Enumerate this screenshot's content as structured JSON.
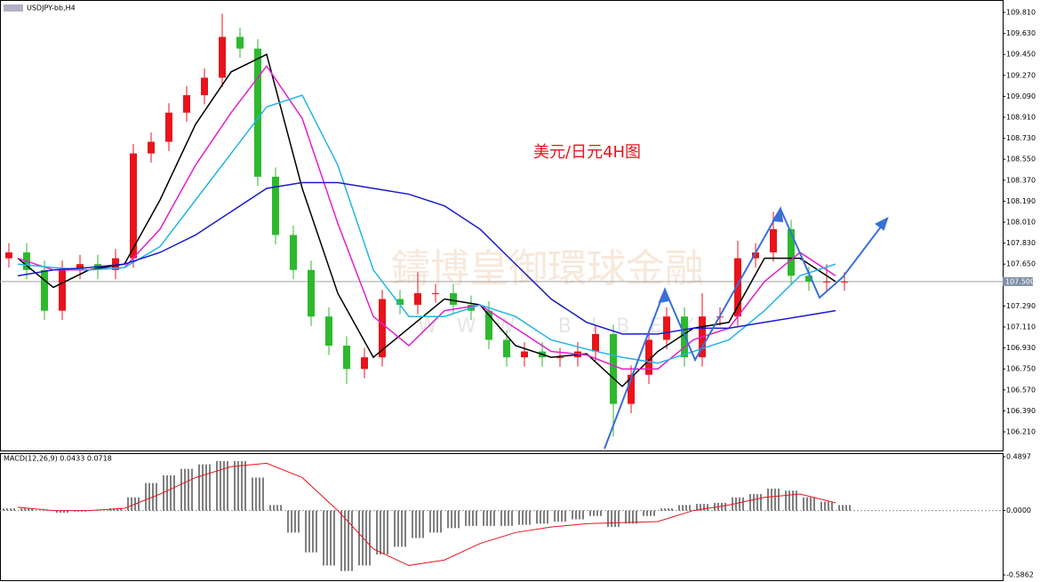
{
  "chart_data": {
    "type": "candlestick",
    "symbol": "USDJPY-bb,H4",
    "annotation": "美元/日元4H图",
    "watermark": "鑄博皇御環球金融",
    "watermark_sub": "WWW.BIBEX",
    "ylim": [
      106.05,
      109.917
    ],
    "yticks": [
      {
        "value": 109.81,
        "label": "109.810"
      },
      {
        "value": 109.63,
        "label": "109.630"
      },
      {
        "value": 109.45,
        "label": "109.450"
      },
      {
        "value": 109.27,
        "label": "109.270"
      },
      {
        "value": 109.09,
        "label": "109.090"
      },
      {
        "value": 108.91,
        "label": "108.910"
      },
      {
        "value": 108.73,
        "label": "108.730"
      },
      {
        "value": 108.55,
        "label": "108.550"
      },
      {
        "value": 108.37,
        "label": "108.370"
      },
      {
        "value": 108.19,
        "label": "108.190"
      },
      {
        "value": 108.01,
        "label": "108.010"
      },
      {
        "value": 107.83,
        "label": "107.830"
      },
      {
        "value": 107.65,
        "label": "107.650"
      },
      {
        "value": 107.29,
        "label": "107.290"
      },
      {
        "value": 107.11,
        "label": "107.110"
      },
      {
        "value": 106.93,
        "label": "106.930"
      },
      {
        "value": 106.75,
        "label": "106.750"
      },
      {
        "value": 106.57,
        "label": "106.570"
      },
      {
        "value": 106.39,
        "label": "106.390"
      },
      {
        "value": 106.21,
        "label": "106.210"
      }
    ],
    "last_price": {
      "value": 107.5,
      "label": "107.500"
    },
    "up_color": "#e8141b",
    "down_color": "#2db92d",
    "open": [
      107.7,
      107.75,
      107.6,
      107.25,
      107.6,
      107.65,
      107.6,
      107.7,
      108.6,
      108.7,
      108.95,
      109.1,
      109.25,
      109.6,
      109.5,
      108.4,
      107.9,
      107.6,
      107.2,
      106.95,
      106.75,
      106.85,
      107.35,
      107.3,
      107.4,
      107.4,
      107.3,
      107.25,
      107.0,
      106.85,
      106.9,
      106.85,
      106.85,
      106.9,
      107.05,
      106.45,
      106.7,
      107.0,
      107.2,
      106.85,
      107.2,
      107.2,
      107.7,
      107.75,
      107.95,
      107.55,
      107.5,
      107.5
    ],
    "high": [
      107.83,
      107.83,
      107.68,
      107.68,
      107.73,
      107.73,
      107.78,
      108.68,
      108.78,
      109.03,
      109.18,
      109.33,
      109.8,
      109.68,
      109.58,
      108.48,
      107.98,
      107.68,
      107.28,
      107.03,
      106.93,
      107.43,
      107.43,
      107.58,
      107.48,
      107.48,
      107.38,
      107.33,
      107.08,
      106.98,
      106.98,
      106.93,
      106.98,
      107.13,
      107.13,
      106.78,
      107.08,
      107.28,
      107.28,
      107.4,
      107.28,
      107.85,
      107.83,
      108.1,
      108.03,
      107.63,
      107.65,
      107.58
    ],
    "low": [
      107.62,
      107.52,
      107.17,
      107.17,
      107.52,
      107.52,
      107.52,
      107.62,
      108.52,
      108.62,
      108.87,
      109.02,
      109.17,
      109.42,
      108.32,
      107.82,
      107.52,
      107.12,
      106.87,
      106.62,
      106.67,
      106.77,
      107.22,
      107.22,
      107.32,
      107.22,
      107.17,
      106.92,
      106.77,
      106.77,
      106.77,
      106.77,
      106.77,
      106.82,
      106.17,
      106.37,
      106.62,
      106.92,
      106.77,
      106.77,
      107.12,
      107.12,
      107.62,
      107.67,
      107.47,
      107.42,
      107.42,
      107.42
    ],
    "close": [
      107.75,
      107.6,
      107.25,
      107.6,
      107.65,
      107.6,
      107.7,
      108.6,
      108.7,
      108.95,
      109.1,
      109.25,
      109.6,
      109.5,
      108.4,
      107.9,
      107.6,
      107.2,
      106.95,
      106.75,
      106.85,
      107.35,
      107.3,
      107.4,
      107.4,
      107.3,
      107.25,
      107.0,
      106.85,
      106.9,
      106.85,
      106.85,
      106.9,
      107.05,
      106.45,
      106.7,
      107.0,
      107.2,
      106.85,
      107.2,
      107.2,
      107.7,
      107.75,
      107.95,
      107.55,
      107.5,
      107.5,
      107.5
    ],
    "series": [
      {
        "color": "#000000",
        "values": [
          107.7,
          107.45,
          107.6,
          107.65,
          108.2,
          108.85,
          109.3,
          109.45,
          108.3,
          107.4,
          106.85,
          107.1,
          107.35,
          107.3,
          106.95,
          106.85,
          106.88,
          106.6,
          106.9,
          107.1,
          107.15,
          107.7,
          107.7,
          107.5
        ]
      },
      {
        "color": "#e020d0",
        "values": [
          107.7,
          107.6,
          107.6,
          107.62,
          107.95,
          108.5,
          108.95,
          109.35,
          108.9,
          108.0,
          107.2,
          106.95,
          107.25,
          107.3,
          107.1,
          106.9,
          106.87,
          106.75,
          106.75,
          107.0,
          107.1,
          107.5,
          107.75,
          107.55
        ]
      },
      {
        "color": "#22b4e6",
        "values": [
          107.65,
          107.62,
          107.6,
          107.62,
          107.8,
          108.2,
          108.6,
          109.0,
          109.1,
          108.5,
          107.6,
          107.2,
          107.2,
          107.3,
          107.2,
          107.0,
          106.92,
          106.85,
          106.8,
          106.9,
          107.0,
          107.25,
          107.55,
          107.65
        ]
      },
      {
        "color": "#1a1ad0",
        "values": [
          107.55,
          107.6,
          107.62,
          107.65,
          107.75,
          107.9,
          108.1,
          108.3,
          108.35,
          108.35,
          108.3,
          108.25,
          108.15,
          107.95,
          107.65,
          107.35,
          107.15,
          107.05,
          107.05,
          107.1,
          107.1,
          107.15,
          107.2,
          107.25
        ]
      }
    ],
    "macd": {
      "title": "MACD(12,26,9) 0.0433 0.0718",
      "ylim": [
        -0.634,
        0.522
      ],
      "yticks": [
        {
          "value": 0.4897,
          "label": "0.4897"
        },
        {
          "value": 0,
          "label": "0.0000"
        },
        {
          "value": -0.5862,
          "label": "-0.5862"
        }
      ],
      "histogram": [
        0.02,
        0.02,
        0.0,
        -0.02,
        -0.01,
        0.0,
        0.02,
        0.12,
        0.25,
        0.32,
        0.38,
        0.42,
        0.45,
        0.45,
        0.3,
        0.05,
        -0.2,
        -0.38,
        -0.5,
        -0.55,
        -0.5,
        -0.4,
        -0.33,
        -0.25,
        -0.2,
        -0.16,
        -0.14,
        -0.14,
        -0.14,
        -0.13,
        -0.12,
        -0.1,
        -0.08,
        -0.05,
        -0.15,
        -0.12,
        -0.05,
        0.02,
        0.05,
        0.06,
        0.07,
        0.12,
        0.15,
        0.2,
        0.18,
        0.12,
        0.08,
        0.05
      ],
      "signal": [
        0.03,
        0.0,
        0.0,
        0.02,
        0.15,
        0.3,
        0.4,
        0.43,
        0.3,
        0.0,
        -0.35,
        -0.5,
        -0.45,
        -0.3,
        -0.2,
        -0.15,
        -0.12,
        -0.11,
        -0.1,
        0.0,
        0.05,
        0.12,
        0.15,
        0.07
      ],
      "signal_color": "#e8141b",
      "hist_color": "#000000"
    }
  }
}
